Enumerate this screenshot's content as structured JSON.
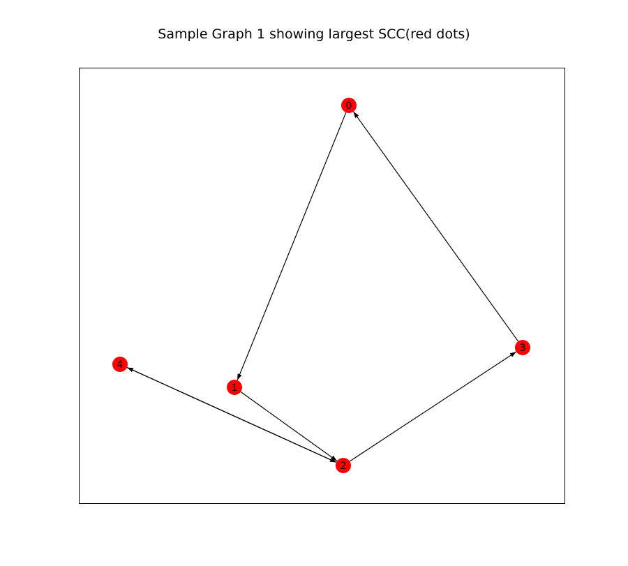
{
  "title": "Sample Graph 1 showing largest SCC(red dots)",
  "colors": {
    "node": "#ff0000",
    "edge": "#000000",
    "frame": "#000000"
  },
  "graph": {
    "nodes": [
      {
        "id": "0",
        "label": "0",
        "in_largest_scc": true
      },
      {
        "id": "1",
        "label": "1",
        "in_largest_scc": true
      },
      {
        "id": "2",
        "label": "2",
        "in_largest_scc": true
      },
      {
        "id": "3",
        "label": "3",
        "in_largest_scc": true
      },
      {
        "id": "4",
        "label": "4",
        "in_largest_scc": true
      }
    ],
    "edges": [
      {
        "from": "0",
        "to": "1"
      },
      {
        "from": "1",
        "to": "2"
      },
      {
        "from": "2",
        "to": "3"
      },
      {
        "from": "3",
        "to": "0"
      },
      {
        "from": "2",
        "to": "4"
      },
      {
        "from": "4",
        "to": "2"
      }
    ]
  }
}
